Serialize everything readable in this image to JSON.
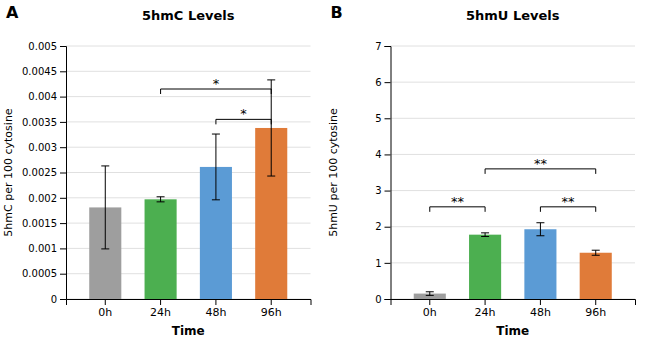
{
  "chart_data": [
    {
      "type": "bar",
      "title": "5hmC Levels",
      "label": "A",
      "categories": [
        "0h",
        "24h",
        "48h",
        "96h"
      ],
      "values": [
        0.00181,
        0.00197,
        0.00261,
        0.00338
      ],
      "errors": [
        0.00082,
        5e-05,
        0.00065,
        0.00095
      ],
      "colors": [
        "#9e9e9e",
        "#4caf50",
        "#5b9bd5",
        "#e07b39"
      ],
      "y_label": "5hmC per 100 cytosine",
      "x_label": "Time",
      "ylim": [
        0,
        0.005
      ],
      "yticks": [
        0,
        0.0005,
        0.001,
        0.0015,
        0.002,
        0.0025,
        0.003,
        0.0035,
        0.004,
        0.0045,
        0.005
      ],
      "grid": true,
      "annotations": [
        {
          "text": "*",
          "from": "24h",
          "to": "96h",
          "y": 0.00415
        },
        {
          "text": "*",
          "from": "48h",
          "to": "96h",
          "y": 0.00355
        }
      ]
    },
    {
      "type": "bar",
      "title": "5hmU Levels",
      "label": "B",
      "categories": [
        "0h",
        "24h",
        "48h",
        "96h"
      ],
      "values": [
        0.15,
        1.78,
        1.93,
        1.28
      ],
      "errors": [
        0.05,
        0.05,
        0.18,
        0.07
      ],
      "colors": [
        "#9e9e9e",
        "#4caf50",
        "#5b9bd5",
        "#e07b39"
      ],
      "y_label": "5hmU per 100 cytosine",
      "x_label": "Time",
      "ylim": [
        0,
        7
      ],
      "yticks": [
        0,
        1,
        2,
        3,
        4,
        5,
        6,
        7
      ],
      "grid": true,
      "annotations": [
        {
          "text": "**",
          "from": "0h",
          "to": "24h",
          "y": 2.55
        },
        {
          "text": "**",
          "from": "24h",
          "to": "96h",
          "y": 3.6
        },
        {
          "text": "**",
          "from": "48h",
          "to": "96h",
          "y": 2.55
        }
      ]
    }
  ]
}
